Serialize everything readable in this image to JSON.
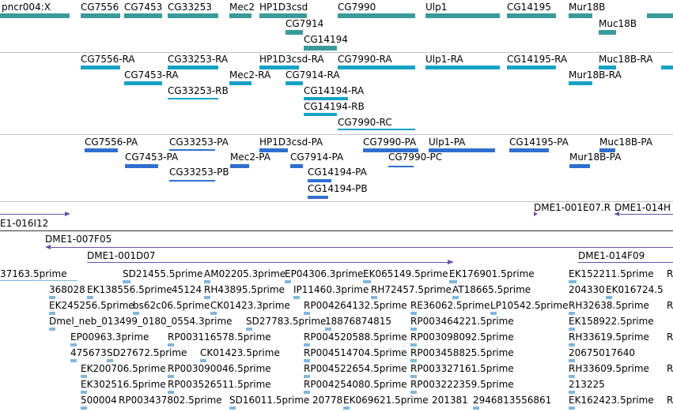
{
  "colors": {
    "gene": "#3a9a9a",
    "rna": "#17a2c5",
    "protein": "#2f6fd0",
    "bac": "#6a4fa8",
    "est": "#7fb7de"
  },
  "genes": [
    "pncr004:X",
    "CG7556",
    "CG7453",
    "CG33253",
    "Mec2",
    "HP1D3csd",
    "CG7990",
    "Ulp1",
    "CG14195",
    "Mur18B",
    "CG7914",
    "Muc18B",
    "CG14194"
  ],
  "rnas": [
    "CG7556-RA",
    "CG33253-RA",
    "HP1D3csd-RA",
    "CG7990-RA",
    "Ulp1-RA",
    "CG14195-RA",
    "Muc18B-RA",
    "CG7453-RA",
    "Mec2-RA",
    "CG7914-RA",
    "Mur18B-RA",
    "CG33253-RB",
    "CG14194-RA",
    "CG14194-RB",
    "CG7990-RC"
  ],
  "proteins": [
    "CG7556-PA",
    "CG33253-PA",
    "HP1D3csd-PA",
    "CG7990-PA",
    "Ulp1-PA",
    "CG14195-PA",
    "Muc18B-PA",
    "CG7453-PA",
    "Mec2-PA",
    "CG7914-PA",
    "CG7990-PC",
    "Mur18B-PA",
    "CG33253-PB",
    "CG14194-PA",
    "CG14194-PB"
  ],
  "bacs": [
    "E1-016I12",
    "DME1-001E07.R",
    "DME1-014H",
    "DME1-007F05",
    "DME1-001D07",
    "DME1-014F09"
  ],
  "ests": [
    "37163.5prime",
    "SD21455.5prime",
    "AM02205.3prime",
    "EP04306.3prime",
    "EK065149.5prime",
    "EK176901.5prime",
    "EK152211.5prime",
    "R",
    "368028",
    "EK138556.5prime",
    "45124",
    "RH43895.5prime",
    "IP11460.3prime",
    "RH72457.5prime",
    "AT18665.5prime",
    "204330",
    "EK016724.5",
    "EK245256.5prime",
    "bs62c06.5prime",
    "CK01423.3prime",
    "RP004264132.5prime",
    "RE36062.5prime",
    "LP10542.5prime",
    "RH32638.5prime",
    "R",
    "Dmel_neb_013499_0180_0554.3prime",
    "SD27783.5prime",
    "18876874815",
    "RP003464221.5prime",
    "EK158922.5prime",
    "EP00963.3prime",
    "RP003116578.5prime",
    "RP004520588.5prime",
    "RP003098092.5prime",
    "RH33619.5prime",
    "R",
    "475673",
    "SD27672.5prime",
    "CK01423.5prime",
    "RP004514704.5prime",
    "RP003458825.5prime",
    "20675017640",
    "EK200706.5prime",
    "RP003090046.5prime",
    "RP004522654.5prime",
    "RP003327161.5prime",
    "RH33609.5prime",
    "R",
    "EK302516.5prime",
    "RP003526511.5prime",
    "RP004254080.5prime",
    "RP003222359.5prime",
    "213225",
    "500004",
    "RP003437802.5prime",
    "SD16011.5prime",
    "20778",
    "EK069621.5prime",
    "201381",
    "2946813556861",
    "EK162423.5prime",
    "R"
  ]
}
